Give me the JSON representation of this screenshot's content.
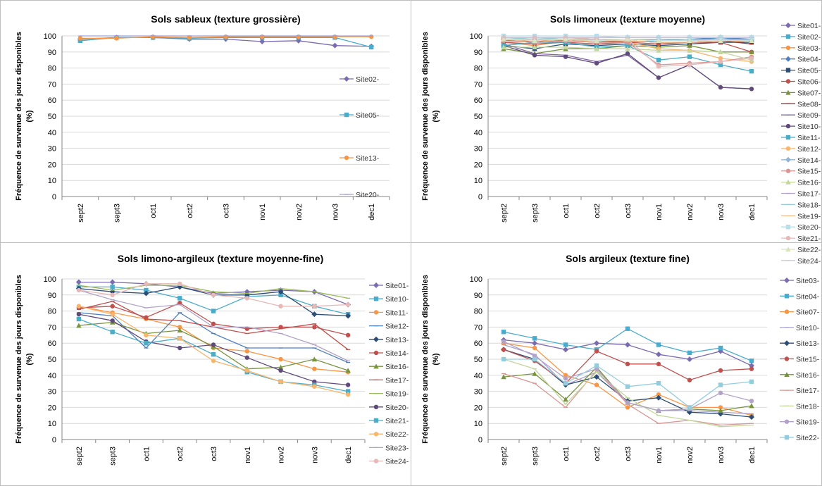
{
  "chart_data": [
    {
      "type": "line",
      "title": "Sols sableux (texture grossière)",
      "ylabel": "Fréquence de survenue des jours disponibles (%)",
      "xlabel": "",
      "categories": [
        "sept2",
        "sept3",
        "oct1",
        "oct2",
        "oct3",
        "nov1",
        "nov2",
        "nov3",
        "dec1"
      ],
      "ylim": [
        0,
        100
      ],
      "yticks": [
        0,
        10,
        20,
        30,
        40,
        50,
        60,
        70,
        80,
        90,
        100
      ],
      "grid": true,
      "legend": "right",
      "series": [
        {
          "name": "Site02-",
          "color": "#7b6bb0",
          "marker": "diamond",
          "values": [
            98,
            99,
            99,
            98,
            98,
            96.5,
            97,
            94,
            93.5
          ]
        },
        {
          "name": "Site05-",
          "color": "#4aaccd",
          "marker": "square",
          "values": [
            97,
            99,
            99,
            98.5,
            99,
            99,
            99,
            99,
            93
          ]
        },
        {
          "name": "Site13-",
          "color": "#f79646",
          "marker": "circle",
          "values": [
            98.5,
            98.5,
            99.5,
            99,
            99.5,
            99.5,
            99.5,
            99.5,
            99.5
          ]
        },
        {
          "name": "Site20-",
          "color": "#a5a0d0",
          "marker": "none",
          "values": [
            100,
            100,
            100,
            100,
            100,
            100,
            100,
            100,
            100
          ]
        }
      ]
    },
    {
      "type": "line",
      "title": "Sols limoneux (texture moyenne)",
      "ylabel": "Fréquence de survenue des jours disponibles (%)",
      "xlabel": "",
      "categories": [
        "sept2",
        "sept3",
        "oct1",
        "oct2",
        "oct3",
        "nov1",
        "nov2",
        "nov3",
        "dec1"
      ],
      "ylim": [
        0,
        100
      ],
      "yticks": [
        0,
        10,
        20,
        30,
        40,
        50,
        60,
        70,
        80,
        90,
        100
      ],
      "grid": true,
      "legend": "right",
      "series": [
        {
          "name": "Site01-",
          "color": "#7b6bb0",
          "marker": "diamond",
          "values": [
            99,
            99,
            99,
            99,
            99,
            99,
            99,
            99,
            99
          ]
        },
        {
          "name": "Site02-",
          "color": "#4aaccd",
          "marker": "square",
          "values": [
            97,
            97,
            98,
            97,
            96,
            97,
            97,
            99,
            97
          ]
        },
        {
          "name": "Site03-",
          "color": "#f79646",
          "marker": "circle",
          "values": [
            96,
            94,
            97,
            96,
            97,
            96,
            96,
            97,
            96
          ]
        },
        {
          "name": "Site04-",
          "color": "#4f81bd",
          "marker": "diamond",
          "values": [
            98,
            97,
            98,
            98,
            98,
            98,
            98,
            99,
            98
          ]
        },
        {
          "name": "Site05-",
          "color": "#2c4d75",
          "marker": "square",
          "values": [
            94,
            92,
            95,
            94,
            95,
            94,
            95,
            96,
            96
          ]
        },
        {
          "name": "Site06-",
          "color": "#c0504d",
          "marker": "circle",
          "values": [
            96,
            95,
            96,
            95,
            96,
            95,
            96,
            96,
            90
          ]
        },
        {
          "name": "Site07-",
          "color": "#77933c",
          "marker": "triangle",
          "values": [
            92,
            89,
            92,
            92,
            94,
            93,
            94,
            90,
            90
          ]
        },
        {
          "name": "Site08-",
          "color": "#953735",
          "marker": "none",
          "values": [
            97,
            97,
            97,
            96,
            97,
            96,
            96,
            97,
            95
          ]
        },
        {
          "name": "Site09-",
          "color": "#8064a2",
          "marker": "none",
          "values": [
            95,
            89,
            88,
            84,
            88,
            74,
            82,
            68,
            67
          ]
        },
        {
          "name": "Site10-",
          "color": "#604a7b",
          "marker": "circle",
          "values": [
            94,
            88,
            87,
            83,
            89,
            74,
            82,
            68,
            67
          ]
        },
        {
          "name": "Site11-",
          "color": "#4bacc6",
          "marker": "square",
          "values": [
            94,
            96,
            96,
            93,
            94,
            85,
            87,
            82,
            78
          ]
        },
        {
          "name": "Site12-",
          "color": "#f9b56b",
          "marker": "circle",
          "values": [
            98,
            96,
            98,
            96,
            96,
            92,
            91,
            86,
            84
          ]
        },
        {
          "name": "Site14-",
          "color": "#95b3d7",
          "marker": "diamond",
          "values": [
            99,
            98,
            99,
            98,
            98,
            98,
            98,
            98,
            98
          ]
        },
        {
          "name": "Site15-",
          "color": "#d99694",
          "marker": "circle",
          "values": [
            97,
            96,
            97,
            96,
            96,
            82,
            83,
            84,
            87
          ]
        },
        {
          "name": "Site16-",
          "color": "#c3d69b",
          "marker": "triangle",
          "values": [
            93,
            93,
            93,
            92,
            92,
            91,
            91,
            90,
            85
          ]
        },
        {
          "name": "Site17-",
          "color": "#b2a2c7",
          "marker": "none",
          "values": [
            98,
            98,
            98,
            98,
            98,
            97,
            97,
            98,
            97
          ]
        },
        {
          "name": "Site18-",
          "color": "#93cddd",
          "marker": "none",
          "values": [
            99,
            98,
            99,
            98,
            98,
            97,
            98,
            98,
            98
          ]
        },
        {
          "name": "Site19-",
          "color": "#fac090",
          "marker": "none",
          "values": [
            98,
            98,
            98,
            97,
            97,
            96,
            96,
            97,
            97
          ]
        },
        {
          "name": "Site20-",
          "color": "#b7dee8",
          "marker": "square",
          "values": [
            100,
            100,
            100,
            100,
            99,
            99,
            99,
            99,
            99
          ]
        },
        {
          "name": "Site21-",
          "color": "#e6b9b8",
          "marker": "circle",
          "values": [
            99,
            99,
            99,
            98,
            98,
            81,
            82,
            84,
            86
          ]
        },
        {
          "name": "Site22-",
          "color": "#d7e4bd",
          "marker": "triangle",
          "values": [
            98,
            97,
            98,
            97,
            98,
            97,
            97,
            97,
            97
          ]
        },
        {
          "name": "Site24-",
          "color": "#ccc1da",
          "marker": "none",
          "values": [
            99,
            99,
            99,
            99,
            99,
            99,
            99,
            99,
            99
          ]
        }
      ]
    },
    {
      "type": "line",
      "title": "Sols limono-argileux (texture moyenne-fine)",
      "ylabel": "Fréquence de survenue des jours disponibles (%)",
      "xlabel": "",
      "categories": [
        "sept2",
        "sept3",
        "oct1",
        "oct2",
        "oct3",
        "nov1",
        "nov2",
        "nov3",
        "dec1"
      ],
      "ylim": [
        0,
        100
      ],
      "yticks": [
        0,
        10,
        20,
        30,
        40,
        50,
        60,
        70,
        80,
        90,
        100
      ],
      "grid": true,
      "legend": "right",
      "series": [
        {
          "name": "Site01-",
          "color": "#7b6bb0",
          "marker": "diamond",
          "values": [
            98,
            98,
            97,
            95,
            91,
            92,
            93,
            92,
            84
          ]
        },
        {
          "name": "Site10-",
          "color": "#4aaccd",
          "marker": "square",
          "values": [
            95,
            95,
            93,
            88,
            80,
            89,
            90,
            83,
            78
          ]
        },
        {
          "name": "Site11-",
          "color": "#f79646",
          "marker": "circle",
          "values": [
            83,
            79,
            75,
            70,
            57,
            55,
            50,
            44,
            42
          ]
        },
        {
          "name": "Site12-",
          "color": "#4f81bd",
          "marker": "none",
          "values": [
            79,
            77,
            57,
            79,
            66,
            57,
            57,
            57,
            48
          ]
        },
        {
          "name": "Site13-",
          "color": "#2c4d75",
          "marker": "diamond",
          "values": [
            94,
            92,
            91,
            95,
            90,
            90,
            92,
            78,
            77
          ]
        },
        {
          "name": "Site14-",
          "color": "#c0504d",
          "marker": "circle",
          "values": [
            82,
            83,
            76,
            85,
            72,
            69,
            70,
            70,
            65
          ]
        },
        {
          "name": "Site16-",
          "color": "#77933c",
          "marker": "triangle",
          "values": [
            71,
            73,
            66,
            68,
            58,
            44,
            45,
            50,
            43
          ]
        },
        {
          "name": "Site17-",
          "color": "#c0504d",
          "marker": "none",
          "values": [
            81,
            86,
            75,
            74,
            70,
            66,
            69,
            72,
            56
          ]
        },
        {
          "name": "Site19-",
          "color": "#9bbb59",
          "marker": "none",
          "values": [
            96,
            93,
            96,
            96,
            92,
            91,
            94,
            92,
            88
          ]
        },
        {
          "name": "Site20-",
          "color": "#604a7b",
          "marker": "circle",
          "values": [
            78,
            74,
            61,
            57,
            59,
            51,
            43,
            36,
            34
          ]
        },
        {
          "name": "Site21-",
          "color": "#4bacc6",
          "marker": "square",
          "values": [
            75,
            67,
            60,
            63,
            53,
            42,
            36,
            34,
            30
          ]
        },
        {
          "name": "Site22-",
          "color": "#f9b56b",
          "marker": "circle",
          "values": [
            83,
            78,
            65,
            63,
            49,
            43,
            36,
            33,
            28
          ]
        },
        {
          "name": "Site23-",
          "color": "#b2a2c7",
          "marker": "none",
          "values": [
            93,
            87,
            82,
            84,
            70,
            70,
            66,
            59,
            49
          ]
        },
        {
          "name": "Site24-",
          "color": "#e6b9b8",
          "marker": "circle",
          "values": [
            93,
            90,
            97,
            97,
            90,
            88,
            83,
            83,
            84
          ]
        }
      ]
    },
    {
      "type": "line",
      "title": "Sols argileux (texture fine)",
      "ylabel": "Fréquence de survenue des jours disponibles (%)",
      "xlabel": "",
      "categories": [
        "sept2",
        "sept3",
        "oct1",
        "oct2",
        "oct3",
        "nov1",
        "nov2",
        "nov3",
        "dec1"
      ],
      "ylim": [
        0,
        100
      ],
      "yticks": [
        0,
        10,
        20,
        30,
        40,
        50,
        60,
        70,
        80,
        90,
        100
      ],
      "grid": true,
      "legend": "right",
      "series": [
        {
          "name": "Site03-",
          "color": "#7b6bb0",
          "marker": "diamond",
          "values": [
            62,
            60,
            56,
            60,
            59,
            53,
            50,
            55,
            46
          ]
        },
        {
          "name": "Site04-",
          "color": "#4aaccd",
          "marker": "square",
          "values": [
            67,
            63,
            59,
            56,
            69,
            59,
            54,
            57,
            49
          ]
        },
        {
          "name": "Site07-",
          "color": "#f79646",
          "marker": "circle",
          "values": [
            60,
            57,
            40,
            34,
            20,
            28,
            20,
            20,
            15
          ]
        },
        {
          "name": "Site10-",
          "color": "#a5a0d0",
          "marker": "none",
          "values": [
            59,
            53,
            34,
            42,
            23,
            18,
            18,
            17,
            16
          ]
        },
        {
          "name": "Site13-",
          "color": "#2c4d75",
          "marker": "diamond",
          "values": [
            56,
            50,
            34,
            39,
            24,
            26,
            17,
            16,
            14
          ]
        },
        {
          "name": "Site15-",
          "color": "#c0504d",
          "marker": "circle",
          "values": [
            56,
            49,
            35,
            55,
            47,
            47,
            37,
            43,
            44
          ]
        },
        {
          "name": "Site16-",
          "color": "#77933c",
          "marker": "triangle",
          "values": [
            39,
            41,
            25,
            45,
            23,
            18,
            19,
            18,
            21
          ]
        },
        {
          "name": "Site17-",
          "color": "#d99694",
          "marker": "none",
          "values": [
            41,
            35,
            20,
            43,
            22,
            10,
            12,
            9,
            10
          ]
        },
        {
          "name": "Site18-",
          "color": "#c3d69b",
          "marker": "none",
          "values": [
            50,
            44,
            22,
            42,
            26,
            15,
            12,
            8,
            9
          ]
        },
        {
          "name": "Site19-",
          "color": "#b2a2c7",
          "marker": "circle",
          "values": [
            61,
            52,
            38,
            44,
            23,
            18,
            19,
            29,
            24
          ]
        },
        {
          "name": "Site22-",
          "color": "#93cddd",
          "marker": "square",
          "values": [
            50,
            50,
            35,
            46,
            33,
            35,
            20,
            34,
            36
          ]
        }
      ]
    }
  ]
}
